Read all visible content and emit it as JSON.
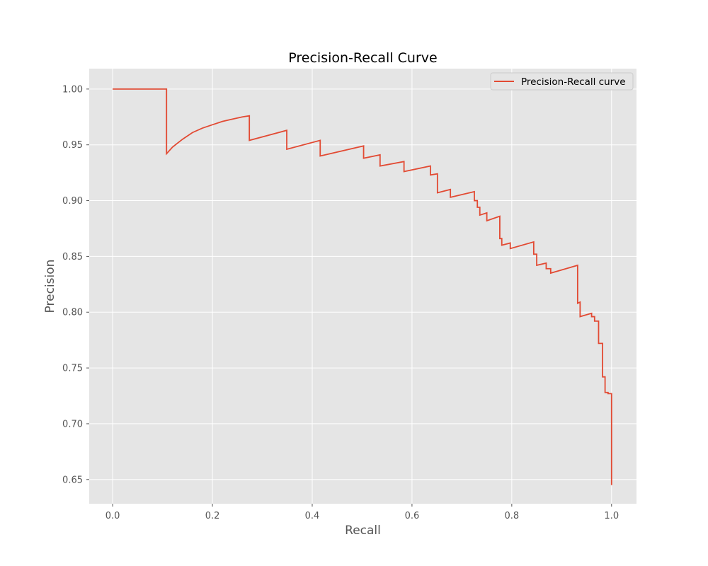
{
  "chart_data": {
    "type": "line",
    "title": "Precision-Recall Curve",
    "xlabel": "Recall",
    "ylabel": "Precision",
    "xlim": [
      -0.047,
      1.05
    ],
    "ylim": [
      0.6283,
      1.0183
    ],
    "xticks": [
      0.0,
      0.2,
      0.4,
      0.6,
      0.8,
      1.0
    ],
    "xtick_labels": [
      "0.0",
      "0.2",
      "0.4",
      "0.6",
      "0.8",
      "1.0"
    ],
    "yticks": [
      0.65,
      0.7,
      0.75,
      0.8,
      0.85,
      0.9,
      0.95,
      1.0
    ],
    "ytick_labels": [
      "0.65",
      "0.70",
      "0.75",
      "0.80",
      "0.85",
      "0.90",
      "0.95",
      "1.00"
    ],
    "grid": true,
    "legend_position": "top-right",
    "series": [
      {
        "name": "Precision-Recall curve",
        "color": "#e24a33",
        "x": [
          0.0,
          0.108,
          0.108,
          0.12,
          0.14,
          0.16,
          0.18,
          0.2,
          0.22,
          0.24,
          0.26,
          0.274,
          0.274,
          0.349,
          0.349,
          0.416,
          0.416,
          0.503,
          0.503,
          0.536,
          0.536,
          0.584,
          0.584,
          0.637,
          0.637,
          0.651,
          0.651,
          0.677,
          0.677,
          0.725,
          0.725,
          0.731,
          0.731,
          0.736,
          0.736,
          0.75,
          0.75,
          0.776,
          0.776,
          0.78,
          0.78,
          0.797,
          0.797,
          0.844,
          0.844,
          0.85,
          0.85,
          0.869,
          0.869,
          0.878,
          0.878,
          0.932,
          0.932,
          0.937,
          0.937,
          0.96,
          0.96,
          0.966,
          0.966,
          0.974,
          0.974,
          0.982,
          0.982,
          0.987,
          0.987,
          0.993,
          0.993,
          1.0,
          1.0
        ],
        "y": [
          1.0,
          1.0,
          0.942,
          0.948,
          0.955,
          0.961,
          0.965,
          0.968,
          0.971,
          0.973,
          0.975,
          0.976,
          0.954,
          0.963,
          0.946,
          0.954,
          0.94,
          0.949,
          0.938,
          0.941,
          0.931,
          0.935,
          0.926,
          0.931,
          0.923,
          0.924,
          0.907,
          0.91,
          0.903,
          0.908,
          0.9,
          0.9,
          0.894,
          0.894,
          0.887,
          0.889,
          0.882,
          0.886,
          0.866,
          0.866,
          0.86,
          0.862,
          0.857,
          0.863,
          0.852,
          0.852,
          0.842,
          0.844,
          0.839,
          0.839,
          0.835,
          0.842,
          0.808,
          0.809,
          0.796,
          0.799,
          0.796,
          0.796,
          0.792,
          0.792,
          0.772,
          0.772,
          0.742,
          0.742,
          0.728,
          0.728,
          0.727,
          0.727,
          0.645
        ]
      }
    ]
  }
}
